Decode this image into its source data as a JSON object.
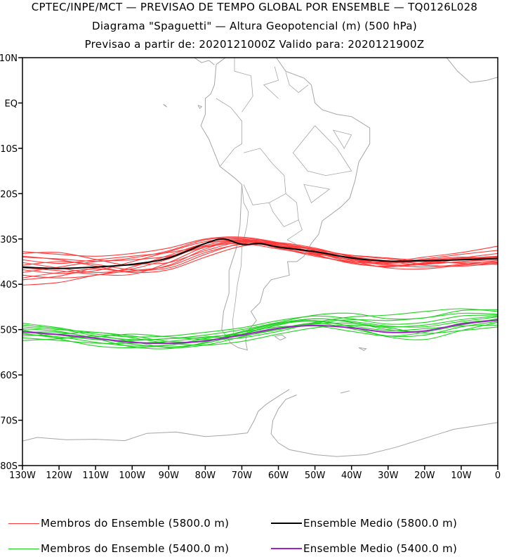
{
  "titles": {
    "line1": "CPTEC/INPE/MCT — PREVISAO DE TEMPO GLOBAL POR ENSEMBLE — TQ0126L028",
    "line2": "Diagrama \"Spaguetti\" — Altura Geopotencial (m) (500 hPa)",
    "line3": "Previsao a partir de: 2020121000Z   Valido para: 2020121900Z"
  },
  "colors": {
    "members_5800": "#ff3a3a",
    "mean_5800": "#000000",
    "members_5400": "#1fd21f",
    "mean_5400": "#a020c8",
    "coast": "#a6a6a6"
  },
  "legend": {
    "members_5800": "Membros do Ensemble (5800.0 m)",
    "mean_5800": "Ensemble Medio (5800.0 m)",
    "members_5400": "Membros do Ensemble (5400.0 m)",
    "mean_5400": "Ensemble Medio (5400.0 m)"
  },
  "chart_data": {
    "type": "line",
    "background": "map",
    "grid": false,
    "xlim": [
      -130,
      0
    ],
    "ylim": [
      -80,
      10
    ],
    "x_ticks": [
      {
        "v": -130,
        "label": "130W"
      },
      {
        "v": -120,
        "label": "120W"
      },
      {
        "v": -110,
        "label": "110W"
      },
      {
        "v": -100,
        "label": "100W"
      },
      {
        "v": -90,
        "label": "90W"
      },
      {
        "v": -80,
        "label": "80W"
      },
      {
        "v": -70,
        "label": "70W"
      },
      {
        "v": -60,
        "label": "60W"
      },
      {
        "v": -50,
        "label": "50W"
      },
      {
        "v": -40,
        "label": "40W"
      },
      {
        "v": -30,
        "label": "30W"
      },
      {
        "v": -20,
        "label": "20W"
      },
      {
        "v": -10,
        "label": "10W"
      },
      {
        "v": 0,
        "label": "0"
      }
    ],
    "y_ticks": [
      {
        "v": 10,
        "label": "10N"
      },
      {
        "v": 0,
        "label": "EQ"
      },
      {
        "v": -10,
        "label": "10S"
      },
      {
        "v": -20,
        "label": "20S"
      },
      {
        "v": -30,
        "label": "30S"
      },
      {
        "v": -40,
        "label": "40S"
      },
      {
        "v": -50,
        "label": "50S"
      },
      {
        "v": -60,
        "label": "60S"
      },
      {
        "v": -70,
        "label": "70S"
      },
      {
        "v": -80,
        "label": "80S"
      }
    ],
    "mean_5800": {
      "lon": [
        -130,
        -120,
        -110,
        -100,
        -90,
        -80,
        -75,
        -70,
        -65,
        -60,
        -50,
        -40,
        -30,
        -20,
        -10,
        0
      ],
      "lat": [
        -36.2,
        -36.5,
        -36.2,
        -35.6,
        -34.2,
        -31.0,
        -30.0,
        -31.2,
        -31.0,
        -31.8,
        -32.8,
        -34.2,
        -34.9,
        -34.8,
        -34.6,
        -34.3
      ]
    },
    "members_5800": [
      {
        "lon": [
          -130,
          -120,
          -110,
          -100,
          -90,
          -80,
          -70,
          -60,
          -50,
          -40,
          -30,
          -20,
          -10,
          0
        ],
        "lat": [
          -33.2,
          -33.0,
          -34.5,
          -35.8,
          -34.0,
          -31.0,
          -30.2,
          -31.6,
          -33.2,
          -34.6,
          -35.2,
          -34.4,
          -33.4,
          -32.5
        ]
      },
      {
        "lon": [
          -130,
          -120,
          -110,
          -100,
          -90,
          -80,
          -70,
          -60,
          -50,
          -40,
          -30,
          -20,
          -10,
          0
        ],
        "lat": [
          -34.0,
          -34.4,
          -34.9,
          -34.2,
          -32.6,
          -30.2,
          -29.8,
          -31.0,
          -33.4,
          -35.4,
          -36.0,
          -35.2,
          -34.5,
          -34.0
        ]
      },
      {
        "lon": [
          -130,
          -120,
          -110,
          -100,
          -90,
          -80,
          -70,
          -60,
          -50,
          -40,
          -30,
          -20,
          -10,
          0
        ],
        "lat": [
          -35.2,
          -36.4,
          -37.4,
          -36.6,
          -34.4,
          -31.4,
          -30.4,
          -31.2,
          -32.4,
          -33.6,
          -34.4,
          -35.0,
          -35.2,
          -35.1
        ]
      },
      {
        "lon": [
          -130,
          -120,
          -110,
          -100,
          -90,
          -80,
          -70,
          -60,
          -50,
          -40,
          -30,
          -20,
          -10,
          0
        ],
        "lat": [
          -36.8,
          -37.6,
          -37.0,
          -35.0,
          -32.8,
          -30.6,
          -30.0,
          -31.4,
          -33.0,
          -34.2,
          -35.6,
          -36.2,
          -35.6,
          -34.8
        ]
      },
      {
        "lon": [
          -130,
          -120,
          -110,
          -100,
          -90,
          -80,
          -70,
          -60,
          -50,
          -40,
          -30,
          -20,
          -10,
          0
        ],
        "lat": [
          -38.0,
          -38.6,
          -38.0,
          -36.2,
          -33.6,
          -31.0,
          -30.4,
          -31.8,
          -33.6,
          -35.2,
          -36.2,
          -35.4,
          -34.2,
          -33.2
        ]
      },
      {
        "lon": [
          -130,
          -120,
          -110,
          -100,
          -90,
          -80,
          -70,
          -60,
          -50,
          -40,
          -30,
          -20,
          -10,
          0
        ],
        "lat": [
          -39.0,
          -38.2,
          -36.4,
          -35.6,
          -35.2,
          -32.6,
          -30.6,
          -31.0,
          -32.2,
          -33.8,
          -35.0,
          -35.8,
          -36.0,
          -35.4
        ]
      },
      {
        "lon": [
          -130,
          -120,
          -110,
          -100,
          -90,
          -80,
          -70,
          -60,
          -50,
          -40,
          -30,
          -20,
          -10,
          0
        ],
        "lat": [
          -40.2,
          -39.6,
          -38.0,
          -37.0,
          -36.0,
          -33.0,
          -31.2,
          -31.6,
          -33.0,
          -34.6,
          -35.8,
          -35.6,
          -35.0,
          -34.6
        ]
      },
      {
        "lon": [
          -130,
          -120,
          -110,
          -100,
          -90,
          -80,
          -70,
          -60,
          -50,
          -40,
          -30,
          -20,
          -10,
          0
        ],
        "lat": [
          -37.4,
          -36.2,
          -35.0,
          -34.6,
          -33.8,
          -31.8,
          -30.8,
          -31.4,
          -32.8,
          -33.6,
          -34.2,
          -34.8,
          -35.4,
          -35.6
        ]
      },
      {
        "lon": [
          -130,
          -120,
          -110,
          -100,
          -90,
          -80,
          -70,
          -60,
          -50,
          -40,
          -30,
          -20,
          -10,
          0
        ],
        "lat": [
          -35.8,
          -35.0,
          -35.6,
          -36.8,
          -36.4,
          -33.4,
          -31.0,
          -30.8,
          -32.0,
          -34.0,
          -35.6,
          -35.6,
          -34.4,
          -33.8
        ]
      },
      {
        "lon": [
          -130,
          -120,
          -110,
          -100,
          -90,
          -80,
          -70,
          -60,
          -50,
          -40,
          -30,
          -20,
          -10,
          0
        ],
        "lat": [
          -33.8,
          -34.6,
          -36.0,
          -37.4,
          -36.8,
          -34.0,
          -31.6,
          -31.0,
          -32.4,
          -34.4,
          -35.2,
          -34.6,
          -34.0,
          -34.4
        ]
      },
      {
        "lon": [
          -130,
          -120,
          -110,
          -100,
          -90,
          -80,
          -70,
          -60,
          -50,
          -40,
          -30,
          -20,
          -10,
          0
        ],
        "lat": [
          -32.8,
          -33.4,
          -33.8,
          -33.2,
          -32.0,
          -30.0,
          -29.6,
          -30.8,
          -32.6,
          -34.8,
          -36.4,
          -36.6,
          -35.8,
          -35.2
        ]
      },
      {
        "lon": [
          -130,
          -120,
          -110,
          -100,
          -90,
          -80,
          -70,
          -60,
          -50,
          -40,
          -30,
          -20,
          -10,
          0
        ],
        "lat": [
          -38.6,
          -37.4,
          -36.6,
          -37.2,
          -35.8,
          -32.2,
          -30.2,
          -31.0,
          -33.0,
          -35.0,
          -35.4,
          -34.8,
          -34.2,
          -34.0
        ]
      },
      {
        "lon": [
          -130,
          -120,
          -110,
          -100,
          -90,
          -80,
          -70,
          -60,
          -50,
          -40,
          -30,
          -20,
          -10,
          0
        ],
        "lat": [
          -36.4,
          -37.0,
          -37.8,
          -37.8,
          -35.2,
          -31.8,
          -30.6,
          -32.0,
          -33.8,
          -35.0,
          -35.0,
          -34.0,
          -33.0,
          -31.6
        ]
      },
      {
        "lon": [
          -130,
          -120,
          -110,
          -100,
          -90,
          -80,
          -70,
          -60,
          -50,
          -40,
          -30,
          -20,
          -10,
          0
        ],
        "lat": [
          -34.6,
          -35.4,
          -34.6,
          -33.8,
          -33.0,
          -31.6,
          -31.0,
          -32.2,
          -33.4,
          -34.0,
          -34.8,
          -35.4,
          -35.0,
          -34.2
        ]
      }
    ],
    "mean_5400": {
      "lon": [
        -130,
        -120,
        -110,
        -100,
        -90,
        -80,
        -70,
        -60,
        -50,
        -40,
        -30,
        -20,
        -10,
        0
      ],
      "lat": [
        -50.5,
        -51.1,
        -51.9,
        -52.8,
        -53.0,
        -52.5,
        -51.2,
        -49.7,
        -49.1,
        -49.6,
        -50.6,
        -50.3,
        -48.8,
        -47.9
      ]
    },
    "members_5400": [
      {
        "lon": [
          -130,
          -120,
          -110,
          -100,
          -90,
          -80,
          -70,
          -60,
          -50,
          -40,
          -30,
          -20,
          -10,
          0
        ],
        "lat": [
          -48.6,
          -49.6,
          -51.0,
          -51.6,
          -51.4,
          -50.6,
          -49.6,
          -48.0,
          -47.0,
          -47.6,
          -48.8,
          -48.4,
          -47.0,
          -46.8
        ]
      },
      {
        "lon": [
          -130,
          -120,
          -110,
          -100,
          -90,
          -80,
          -70,
          -60,
          -50,
          -40,
          -30,
          -20,
          -10,
          0
        ],
        "lat": [
          -49.4,
          -50.0,
          -50.6,
          -51.4,
          -52.6,
          -52.6,
          -50.6,
          -48.6,
          -47.6,
          -48.2,
          -49.2,
          -49.4,
          -48.2,
          -47.2
        ]
      },
      {
        "lon": [
          -130,
          -120,
          -110,
          -100,
          -90,
          -80,
          -70,
          -60,
          -50,
          -40,
          -30,
          -20,
          -10,
          0
        ],
        "lat": [
          -50.2,
          -51.2,
          -52.2,
          -52.4,
          -52.0,
          -51.2,
          -50.0,
          -48.4,
          -46.8,
          -46.4,
          -47.6,
          -47.4,
          -45.8,
          -45.6
        ]
      },
      {
        "lon": [
          -130,
          -120,
          -110,
          -100,
          -90,
          -80,
          -70,
          -60,
          -50,
          -40,
          -30,
          -20,
          -10,
          0
        ],
        "lat": [
          -51.0,
          -51.6,
          -52.8,
          -53.6,
          -53.4,
          -52.4,
          -51.0,
          -49.0,
          -47.6,
          -48.4,
          -50.0,
          -50.4,
          -49.0,
          -47.6
        ]
      },
      {
        "lon": [
          -130,
          -120,
          -110,
          -100,
          -90,
          -80,
          -70,
          -60,
          -50,
          -40,
          -30,
          -20,
          -10,
          0
        ],
        "lat": [
          -51.8,
          -52.4,
          -53.0,
          -53.0,
          -52.6,
          -51.8,
          -51.4,
          -50.0,
          -48.8,
          -48.6,
          -49.4,
          -49.0,
          -47.8,
          -47.0
        ]
      },
      {
        "lon": [
          -130,
          -120,
          -110,
          -100,
          -90,
          -80,
          -70,
          -60,
          -50,
          -40,
          -30,
          -20,
          -10,
          0
        ],
        "lat": [
          -52.4,
          -52.0,
          -51.4,
          -52.6,
          -54.0,
          -53.4,
          -51.6,
          -49.8,
          -48.6,
          -49.8,
          -51.4,
          -51.2,
          -49.4,
          -48.2
        ]
      },
      {
        "lon": [
          -130,
          -120,
          -110,
          -100,
          -90,
          -80,
          -70,
          -60,
          -50,
          -40,
          -30,
          -20,
          -10,
          0
        ],
        "lat": [
          -50.0,
          -52.0,
          -53.6,
          -54.0,
          -53.4,
          -52.0,
          -50.6,
          -49.4,
          -49.2,
          -50.4,
          -51.4,
          -50.6,
          -48.6,
          -47.8
        ]
      },
      {
        "lon": [
          -130,
          -120,
          -110,
          -100,
          -90,
          -80,
          -70,
          -60,
          -50,
          -40,
          -30,
          -20,
          -10,
          0
        ],
        "lat": [
          -49.0,
          -49.8,
          -51.4,
          -52.2,
          -52.0,
          -51.6,
          -51.0,
          -50.0,
          -48.4,
          -47.2,
          -46.8,
          -46.0,
          -45.4,
          -46.0
        ]
      },
      {
        "lon": [
          -130,
          -120,
          -110,
          -100,
          -90,
          -80,
          -70,
          -60,
          -50,
          -40,
          -30,
          -20,
          -10,
          0
        ],
        "lat": [
          -50.6,
          -50.6,
          -51.8,
          -53.2,
          -53.8,
          -53.0,
          -51.0,
          -48.8,
          -48.2,
          -49.2,
          -50.2,
          -49.8,
          -49.2,
          -49.0
        ]
      },
      {
        "lon": [
          -130,
          -120,
          -110,
          -100,
          -90,
          -80,
          -70,
          -60,
          -50,
          -40,
          -30,
          -20,
          -10,
          0
        ],
        "lat": [
          -51.4,
          -51.0,
          -50.6,
          -51.8,
          -53.0,
          -53.4,
          -52.6,
          -51.0,
          -49.6,
          -49.0,
          -49.6,
          -50.8,
          -50.2,
          -49.4
        ]
      },
      {
        "lon": [
          -130,
          -120,
          -110,
          -100,
          -90,
          -80,
          -70,
          -60,
          -50,
          -40,
          -30,
          -20,
          -10,
          0
        ],
        "lat": [
          -49.8,
          -50.4,
          -52.0,
          -53.8,
          -54.2,
          -52.8,
          -50.4,
          -48.6,
          -48.0,
          -49.4,
          -51.6,
          -52.2,
          -50.2,
          -48.4
        ]
      },
      {
        "lon": [
          -130,
          -120,
          -110,
          -100,
          -90,
          -80,
          -70,
          -60,
          -50,
          -40,
          -30,
          -20,
          -10,
          0
        ],
        "lat": [
          -50.8,
          -51.8,
          -51.6,
          -51.0,
          -51.6,
          -52.2,
          -51.8,
          -50.4,
          -48.6,
          -47.8,
          -48.0,
          -47.4,
          -46.4,
          -46.6
        ]
      }
    ]
  }
}
